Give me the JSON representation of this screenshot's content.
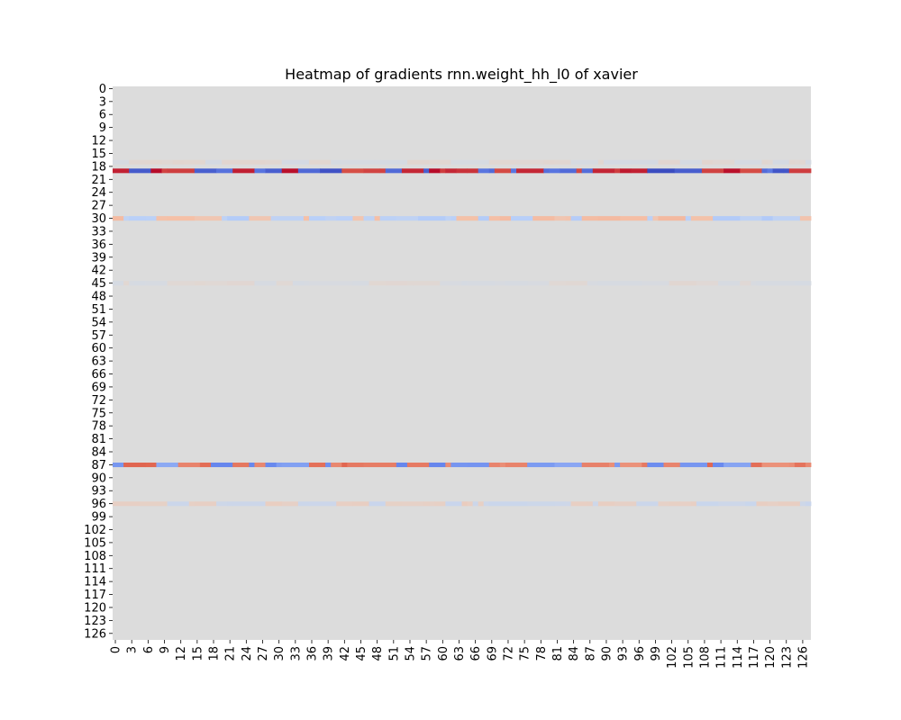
{
  "chart_data": {
    "type": "heatmap",
    "title": "Heatmap of gradients rnn.weight_hh_l0 of xavier",
    "rows": 128,
    "cols": 128,
    "x_tick_step": 3,
    "y_tick_step": 3,
    "colormap": "coolwarm",
    "colorbar": false,
    "colors": {
      "neutral": "#dcdcdc",
      "pos_strong": "#b40426",
      "pos_medium": "#e26952",
      "pos_light": "#f5c0a7",
      "neg_strong": "#3b4cc0",
      "neg_medium": "#6788ee",
      "neg_light": "#b9d0f9"
    },
    "highlight_rows": [
      {
        "row": 19,
        "intensity": 1.0
      },
      {
        "row": 30,
        "intensity": 0.28
      },
      {
        "row": 87,
        "intensity": 0.62
      },
      {
        "row": 96,
        "intensity": 0.14
      },
      {
        "row": 17,
        "intensity": 0.06
      },
      {
        "row": 45,
        "intensity": 0.05
      }
    ]
  }
}
